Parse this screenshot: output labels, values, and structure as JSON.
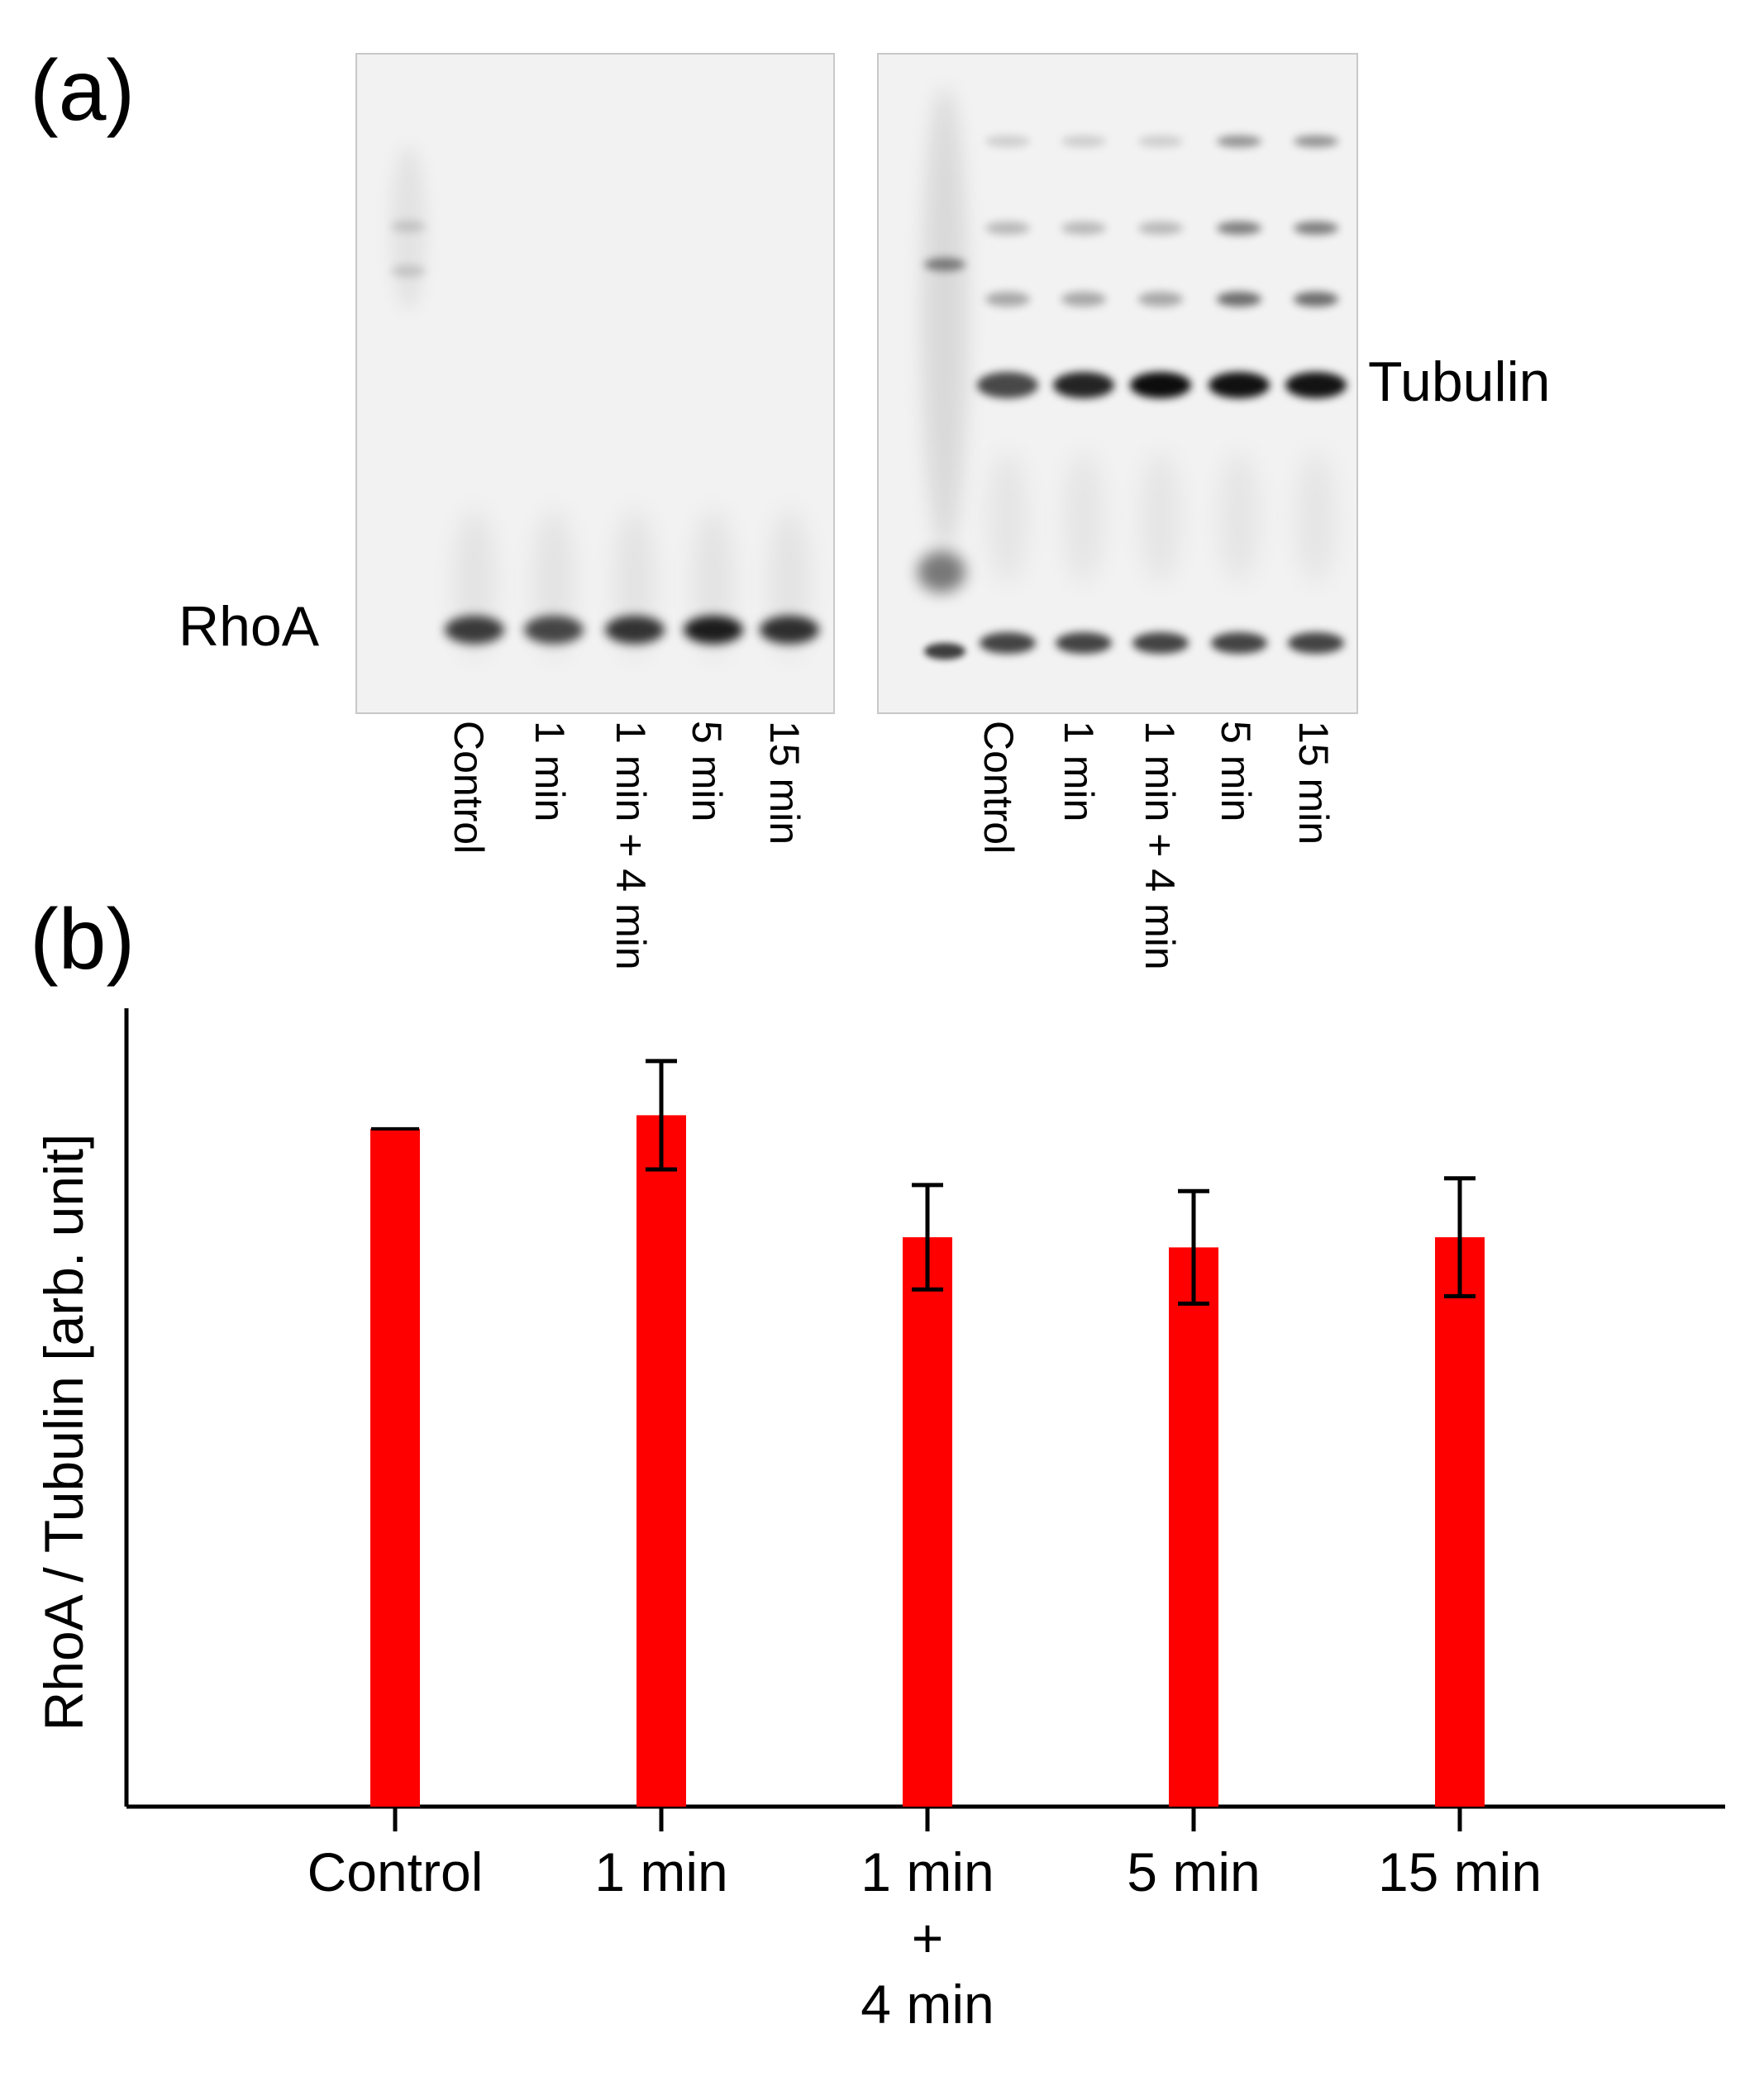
{
  "panels": {
    "a": "(a)",
    "b": "(b)"
  },
  "gel": {
    "left_band_label": "RhoA",
    "right_band_label": "Tubulin",
    "lane_labels": [
      "Control",
      "1 min",
      "1 min + 4 min",
      "5 min",
      "15 min"
    ]
  },
  "chart_data": {
    "type": "bar",
    "ylabel": "RhoA / Tubulin [arb. unit]",
    "xlabel": "",
    "categories": [
      [
        "Control"
      ],
      [
        "1 min"
      ],
      [
        "1 min",
        "+",
        "4 min"
      ],
      [
        "5 min"
      ],
      [
        "15 min"
      ]
    ],
    "values": [
      1.0,
      1.02,
      0.84,
      0.825,
      0.84
    ],
    "errors": [
      0.0,
      0.08,
      0.077,
      0.083,
      0.087
    ],
    "ylim": [
      0,
      1.19
    ],
    "bar_color": "#ff0000",
    "grid": false
  }
}
